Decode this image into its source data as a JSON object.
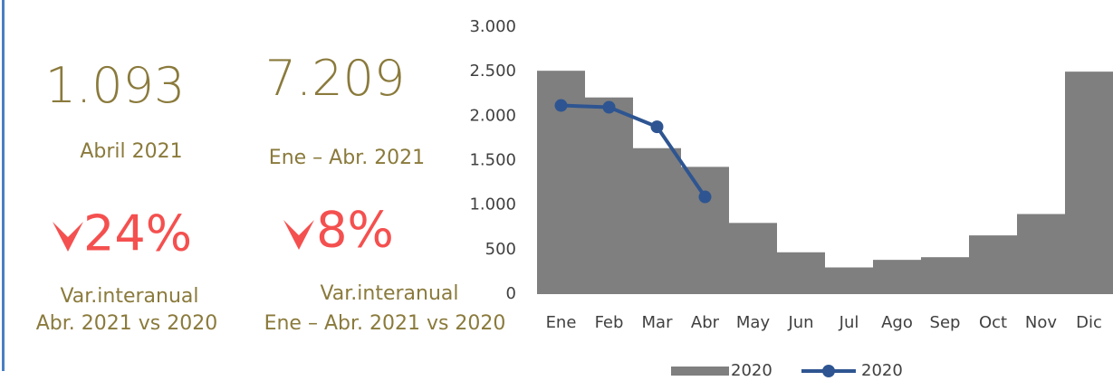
{
  "kpis": [
    {
      "value": "1.093",
      "period": "Abril 2021",
      "change": "24%",
      "change_label": "Var.interanual",
      "change_period": "Abr.  2021 vs 2020"
    },
    {
      "value": "7.209",
      "period": "Ene – Abr.  2021",
      "change": "8%",
      "change_label": "Var.interanual",
      "change_period": "Ene – Abr. 2021 vs 2020"
    }
  ],
  "chart_data": {
    "type": "bar",
    "categories": [
      "Ene",
      "Feb",
      "Mar",
      "Abr",
      "May",
      "Jun",
      "Jul",
      "Ago",
      "Sep",
      "Oct",
      "Nov",
      "Dic"
    ],
    "series": [
      {
        "name": "2020",
        "type": "bar",
        "color": "#7f7f7f",
        "values": [
          2510,
          2210,
          1640,
          1430,
          800,
          470,
          300,
          385,
          415,
          660,
          900,
          2500
        ]
      },
      {
        "name": "2020",
        "type": "line",
        "color": "#2e5591",
        "values": [
          2120,
          2100,
          1880,
          1093,
          null,
          null,
          null,
          null,
          null,
          null,
          null,
          null
        ]
      }
    ],
    "ylim": [
      0,
      3000
    ],
    "yticks": [
      0,
      500,
      {
        "value": 1000,
        "label": "1.000"
      },
      {
        "value": 1500,
        "label": "1.500"
      },
      {
        "value": 2000,
        "label": "2.000"
      },
      {
        "value": 2500,
        "label": "2.500"
      },
      {
        "value": 3000,
        "label": "3.000"
      }
    ],
    "legend": "bottom"
  }
}
